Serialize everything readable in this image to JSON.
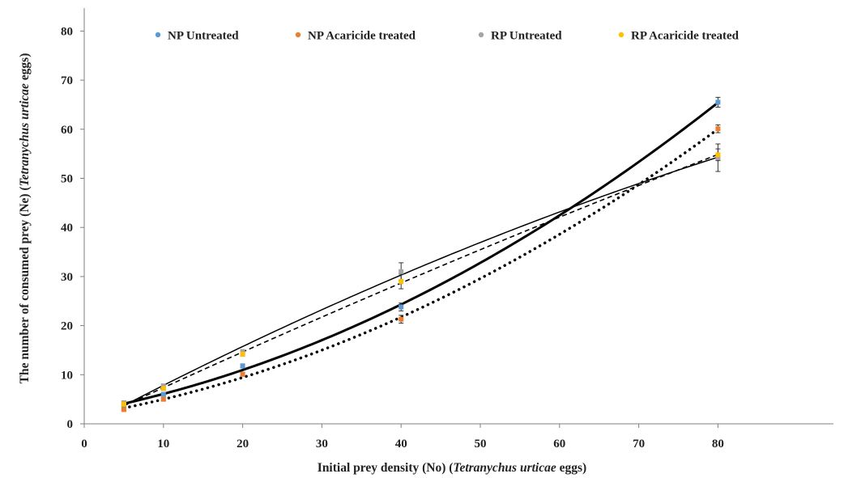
{
  "chart_data": {
    "type": "scatter",
    "xlabel": "Initial prey density (No) (Tetranychus urticae eggs)",
    "ylabel": "The number of consumed prey (Ne) (Tetranychus urticae eggs)",
    "xlabel_parts": [
      "Initial prey density (No) (",
      "Tetranychus urticae",
      " eggs)"
    ],
    "ylabel_parts": [
      "The number of consumed prey (Ne) (",
      "Tetranychus urticae",
      " eggs)"
    ],
    "xlim": [
      0,
      90
    ],
    "ylim": [
      0,
      80
    ],
    "xticks": [
      0,
      10,
      20,
      30,
      40,
      50,
      60,
      70,
      80
    ],
    "yticks": [
      0,
      10,
      20,
      30,
      40,
      50,
      60,
      70,
      80
    ],
    "legend_position": "top",
    "grid": false,
    "series": [
      {
        "name": "NP Untreated",
        "color": "#5B9BD5",
        "trend_style": "thick-solid",
        "points": [
          [
            5,
            3.8
          ],
          [
            10,
            6.0
          ],
          [
            20,
            11.8
          ],
          [
            40,
            23.8
          ],
          [
            80,
            65.5
          ]
        ],
        "errors": [
          0.3,
          0.3,
          0.4,
          0.8,
          1.0
        ]
      },
      {
        "name": "NP Acaricide treated",
        "color": "#ED7D31",
        "trend_style": "dotted",
        "points": [
          [
            5,
            2.9
          ],
          [
            10,
            5.0
          ],
          [
            20,
            10.1
          ],
          [
            40,
            21.3
          ],
          [
            80,
            60.1
          ]
        ],
        "errors": [
          0.2,
          0.3,
          0.4,
          0.8,
          0.8
        ]
      },
      {
        "name": "RP Untreated",
        "color": "#A5A5A5",
        "trend_style": "thin-solid",
        "points": [
          [
            5,
            4.3
          ],
          [
            10,
            7.7
          ],
          [
            20,
            14.7
          ],
          [
            40,
            31.0
          ],
          [
            80,
            54.2
          ]
        ],
        "errors": [
          0.3,
          0.4,
          0.4,
          1.8,
          2.8
        ]
      },
      {
        "name": "RP Acaricide treated",
        "color": "#FFC000",
        "trend_style": "dashed",
        "points": [
          [
            5,
            4.0
          ],
          [
            10,
            7.2
          ],
          [
            20,
            14.2
          ],
          [
            40,
            29.0
          ],
          [
            80,
            54.8
          ]
        ],
        "errors": [
          0.3,
          0.4,
          0.4,
          1.5,
          1.2
        ]
      }
    ]
  }
}
